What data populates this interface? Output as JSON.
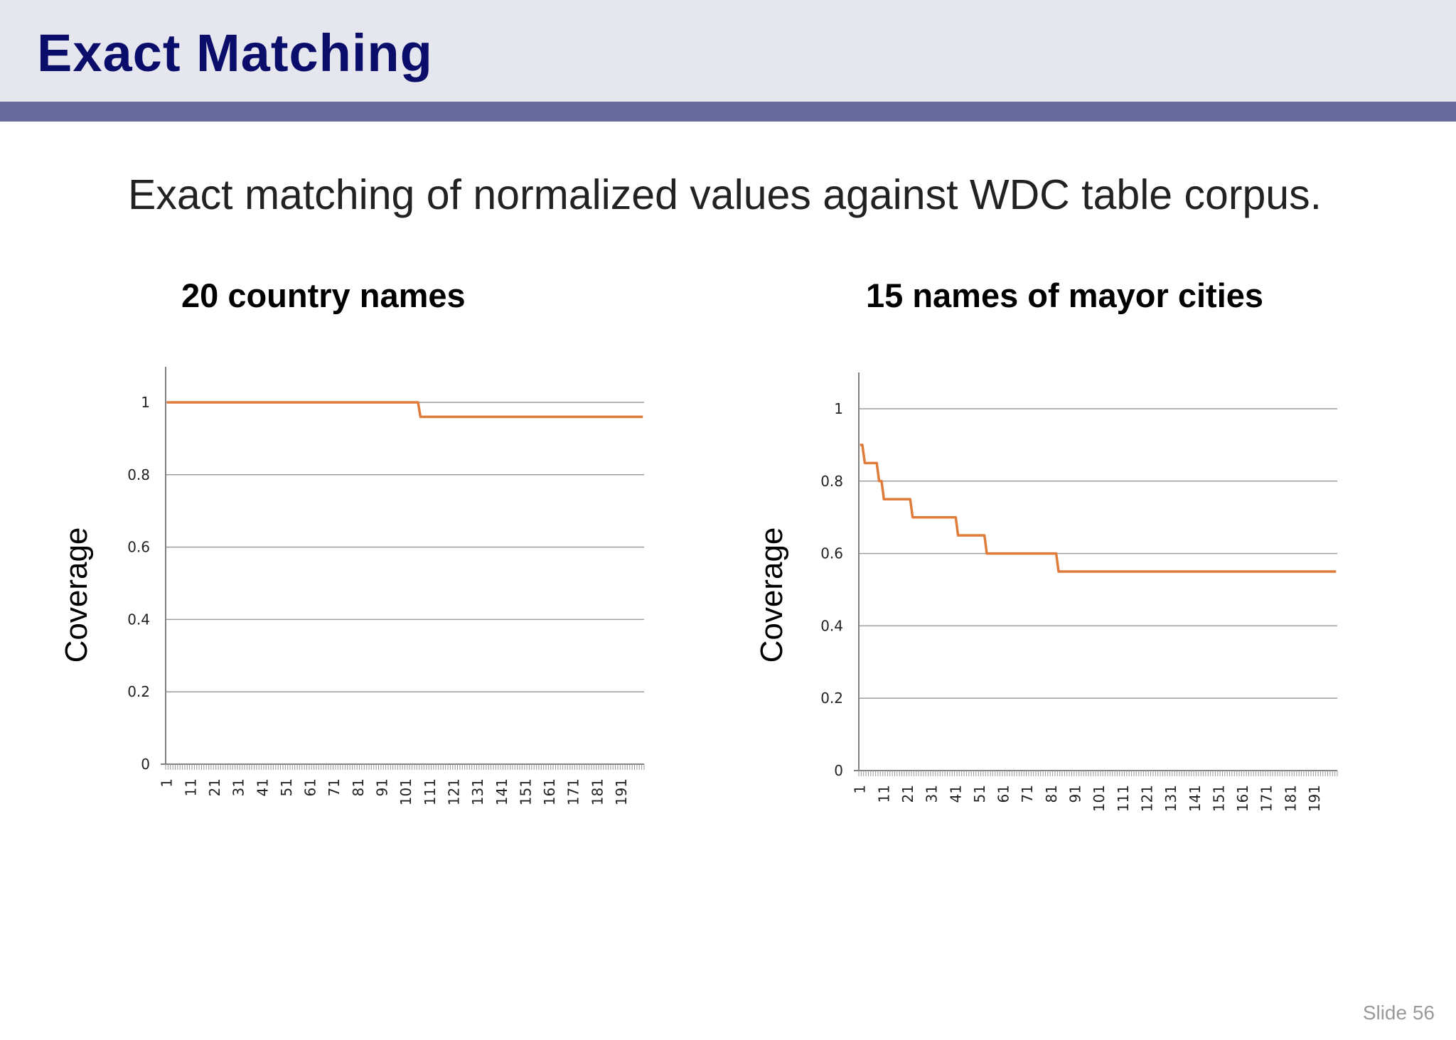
{
  "slide": {
    "title": "Exact Matching",
    "subtitle": "Exact matching of normalized values against WDC table corpus.",
    "number": "Slide 56",
    "accent_color": "#0b0d6b",
    "bar_color": "#676a9c",
    "header_bg": "#e6e6ef"
  },
  "chart_data": [
    {
      "type": "line",
      "title": "20 country names",
      "ylabel": "Coverage",
      "xlabel": "",
      "ylim": [
        0,
        1
      ],
      "yticks": [
        "0",
        "0.2",
        "0.4",
        "0.6",
        "0.8",
        "1"
      ],
      "xticks": [
        "1",
        "11",
        "21",
        "31",
        "41",
        "51",
        "61",
        "71",
        "81",
        "91",
        "101",
        "111",
        "121",
        "131",
        "141",
        "151",
        "161",
        "171",
        "181",
        "191"
      ],
      "grid": true,
      "line_color": "#e07b39",
      "series": [
        {
          "x": [
            1,
            106,
            107,
            200
          ],
          "y": [
            1,
            1,
            0.96,
            0.96
          ]
        }
      ]
    },
    {
      "type": "line",
      "title": "15 names of mayor cities",
      "ylabel": "Coverage",
      "xlabel": "",
      "ylim": [
        0,
        1
      ],
      "yticks": [
        "0",
        "0.2",
        "0.4",
        "0.6",
        "0.8",
        "1"
      ],
      "xticks": [
        "1",
        "11",
        "21",
        "31",
        "41",
        "51",
        "61",
        "71",
        "81",
        "91",
        "101",
        "111",
        "121",
        "131",
        "141",
        "151",
        "161",
        "171",
        "181",
        "191"
      ],
      "grid": true,
      "line_color": "#e07b39",
      "series": [
        {
          "x": [
            1,
            2,
            3,
            8,
            9,
            10,
            11,
            12,
            22,
            23,
            41,
            42,
            53,
            54,
            83,
            84,
            200
          ],
          "y": [
            0.9,
            0.9,
            0.85,
            0.85,
            0.8,
            0.8,
            0.75,
            0.75,
            0.75,
            0.7,
            0.7,
            0.65,
            0.65,
            0.6,
            0.6,
            0.55,
            0.55
          ]
        }
      ]
    }
  ]
}
